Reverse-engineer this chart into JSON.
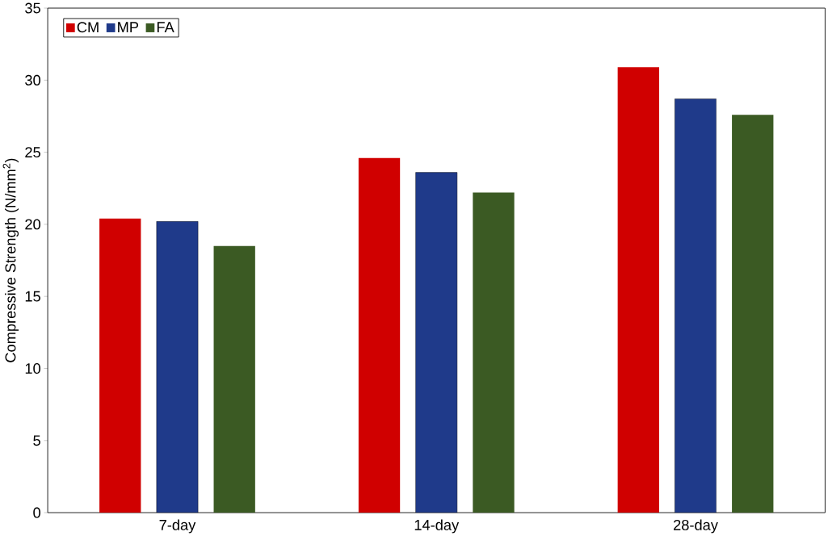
{
  "chart_data": {
    "type": "bar",
    "ylabel": "Compressive Strength (N/mm$^{2}$)",
    "categories": [
      "7-day",
      "14-day",
      "28-day"
    ],
    "series": [
      {
        "name": "CM",
        "color": "#d00000",
        "values": [
          20.4,
          24.6,
          30.9
        ]
      },
      {
        "name": "MP",
        "color": "#1f3a8a",
        "values": [
          20.2,
          23.6,
          28.7
        ]
      },
      {
        "name": "FA",
        "color": "#3b5a23",
        "values": [
          18.5,
          22.2,
          27.6
        ]
      }
    ],
    "ylim": [
      0,
      35
    ],
    "yticks": [
      0,
      5,
      10,
      15,
      20,
      25,
      30,
      35
    ],
    "grid": false,
    "legend": "top left"
  }
}
